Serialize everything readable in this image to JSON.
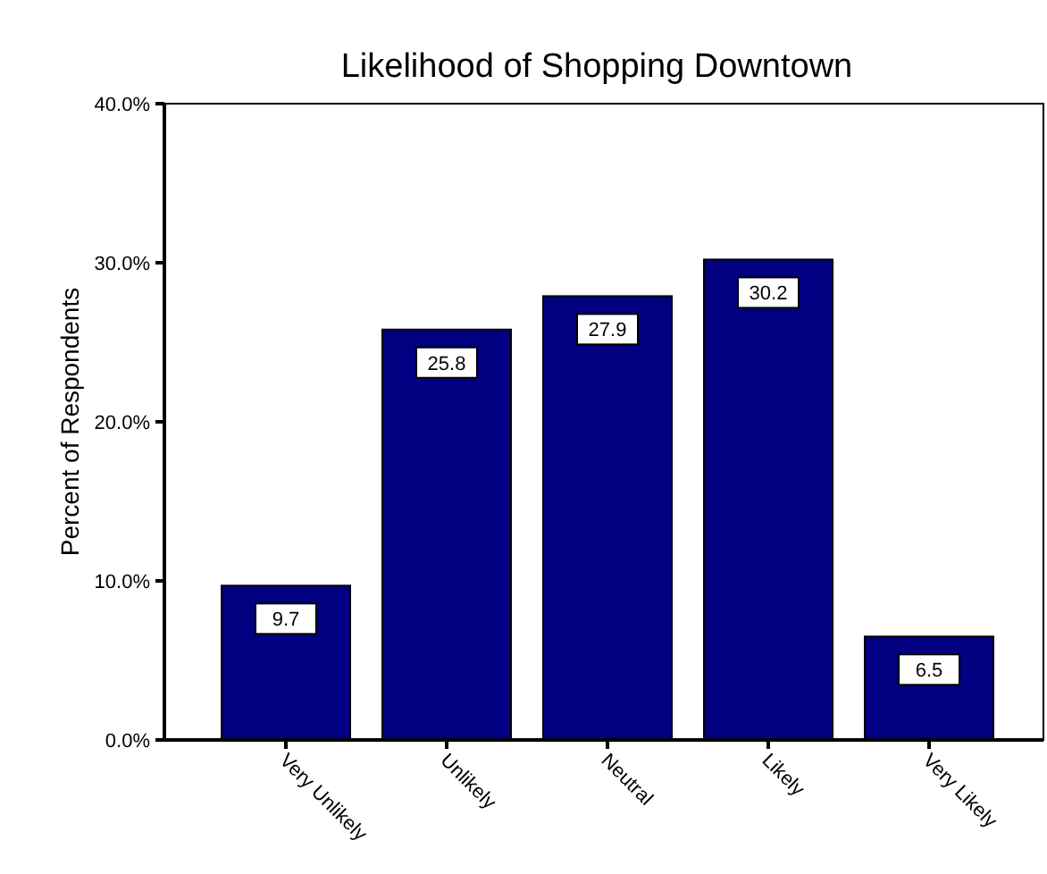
{
  "chart_data": {
    "type": "bar",
    "title": "Likelihood of Shopping Downtown",
    "ylabel": "Percent of Respondents",
    "categories": [
      "Very Unlikely",
      "Unlikely",
      "Neutral",
      "Likely",
      "Very Likely"
    ],
    "values": [
      9.7,
      25.8,
      27.9,
      30.2,
      6.5
    ],
    "color": "#000080",
    "ylim": [
      0,
      40
    ],
    "yticks": [
      {
        "value": 0,
        "label": "0.0%"
      },
      {
        "value": 10,
        "label": "10.0%"
      },
      {
        "value": 20,
        "label": "20.0%"
      },
      {
        "value": 30,
        "label": "30.0%"
      },
      {
        "value": 40,
        "label": "40.0%"
      }
    ],
    "grid": false,
    "data_labels": true
  }
}
